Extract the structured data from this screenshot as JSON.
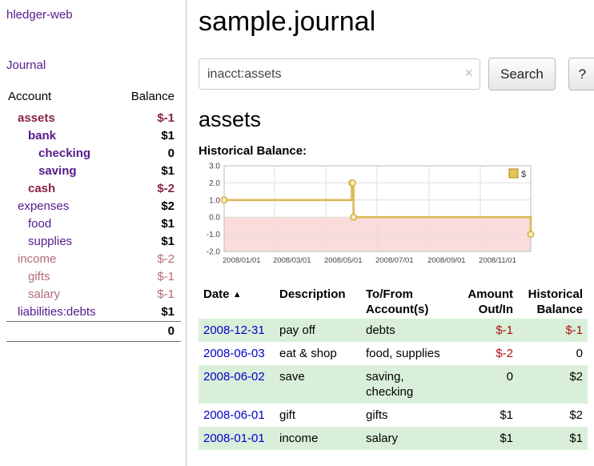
{
  "brand": "hledger-web",
  "nav": {
    "journal": "Journal"
  },
  "sidebar": {
    "account_header": "Account",
    "balance_header": "Balance",
    "accounts": [
      {
        "name": "assets",
        "balance": "$-1"
      },
      {
        "name": "bank",
        "balance": "$1"
      },
      {
        "name": "checking",
        "balance": "0"
      },
      {
        "name": "saving",
        "balance": "$1"
      },
      {
        "name": "cash",
        "balance": "$-2"
      },
      {
        "name": "expenses",
        "balance": "$2"
      },
      {
        "name": "food",
        "balance": "$1"
      },
      {
        "name": "supplies",
        "balance": "$1"
      },
      {
        "name": "income",
        "balance": "$-2"
      },
      {
        "name": "gifts",
        "balance": "$-1"
      },
      {
        "name": "salary",
        "balance": "$-1"
      },
      {
        "name": "liabilities:debts",
        "balance": "$1"
      }
    ],
    "total": "0"
  },
  "header": {
    "title": "sample.journal"
  },
  "search": {
    "value": "inacct:assets",
    "clear_icon": "×",
    "button_label": "Search",
    "help_label": "?"
  },
  "register": {
    "account_title": "assets",
    "chart_title": "Historical Balance:"
  },
  "chart_data": {
    "type": "line",
    "step": true,
    "title": "Historical Balance",
    "series": [
      {
        "name": "$",
        "points": [
          {
            "date": "2008-01-01",
            "balance": 1
          },
          {
            "date": "2008-06-01",
            "balance": 2
          },
          {
            "date": "2008-06-02",
            "balance": 2
          },
          {
            "date": "2008-06-03",
            "balance": 0
          },
          {
            "date": "2008-12-31",
            "balance": -1
          }
        ]
      }
    ],
    "ylim": [
      -2,
      3
    ],
    "yticks": [
      3.0,
      2.0,
      1.0,
      0.0,
      -1.0,
      -2.0
    ],
    "xticks": [
      "2008/01/01",
      "2008/03/01",
      "2008/05/01",
      "2008/07/01",
      "2008/09/01",
      "2008/11/01"
    ],
    "xrange": [
      "2008-01-01",
      "2008-12-31"
    ],
    "legend": "$",
    "legend_position": "top-right",
    "grid": true,
    "line_color": "#d9b64e",
    "marker_fill": "#faf0c8",
    "negative_fill": "#fbdcdc",
    "legend_fill": "#e8c34e",
    "legend_border": "#a8862c"
  },
  "table": {
    "headers": {
      "date": "Date",
      "sort_icon": "▲",
      "description": "Description",
      "tofrom_line1": "To/From",
      "tofrom_line2": "Account(s)",
      "amount_line1": "Amount",
      "amount_line2": "Out/In",
      "balance_line1": "Historical",
      "balance_line2": "Balance"
    },
    "rows": [
      {
        "date": "2008-12-31",
        "description": "pay off",
        "tofrom": "debts",
        "amount": "$-1",
        "balance": "$-1"
      },
      {
        "date": "2008-06-03",
        "description": "eat & shop",
        "tofrom": "food, supplies",
        "amount": "$-2",
        "balance": "0"
      },
      {
        "date": "2008-06-02",
        "description": "save",
        "tofrom": "saving, checking",
        "amount": "0",
        "balance": "$2"
      },
      {
        "date": "2008-06-01",
        "description": "gift",
        "tofrom": "gifts",
        "amount": "$1",
        "balance": "$2"
      },
      {
        "date": "2008-01-01",
        "description": "income",
        "tofrom": "salary",
        "amount": "$1",
        "balance": "$1"
      }
    ]
  },
  "colors": {
    "link_purple": "#551a8b",
    "negative_red": "#aa1111",
    "negative_dark": "#8b2244",
    "negative_soft": "#b56a76",
    "row_green": "#d9efd9",
    "date_link_blue": "#0000cc"
  }
}
